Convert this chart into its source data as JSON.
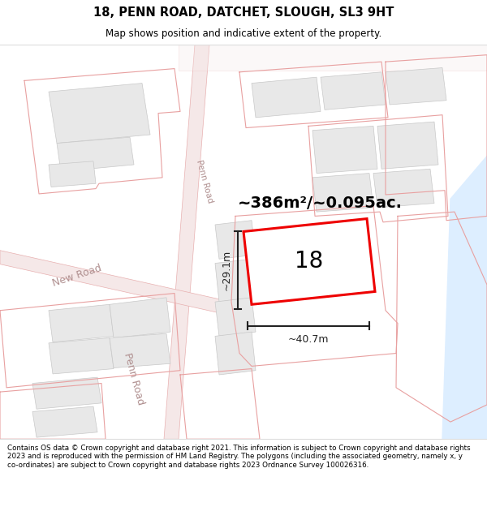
{
  "title": "18, PENN ROAD, DATCHET, SLOUGH, SL3 9HT",
  "subtitle": "Map shows position and indicative extent of the property.",
  "area_label": "~386m²/~0.095ac.",
  "property_number": "18",
  "dim_width": "~40.7m",
  "dim_height": "~29.1m",
  "footer": "Contains OS data © Crown copyright and database right 2021. This information is subject to Crown copyright and database rights 2023 and is reproduced with the permission of HM Land Registry. The polygons (including the associated geometry, namely x, y co-ordinates) are subject to Crown copyright and database rights 2023 Ordnance Survey 100026316.",
  "bg_color": "#ffffff",
  "road_fill": "#f5e8e8",
  "road_edge": "#e8b0b0",
  "building_fill": "#e8e8e8",
  "building_edge": "#c8c8c8",
  "prop_outline": "#e8a8a8",
  "prop_inner": "#e8a8a8",
  "highlight_color": "#ee0000",
  "text_color": "#000000",
  "road_label_color": "#b09090",
  "water_color": "#ddeeff",
  "dim_line_color": "#222222",
  "title_fontsize": 10.5,
  "subtitle_fontsize": 8.5,
  "area_fontsize": 14,
  "number_fontsize": 20,
  "dim_fontsize": 9,
  "footer_fontsize": 6.3,
  "road_label_fontsize": 9
}
